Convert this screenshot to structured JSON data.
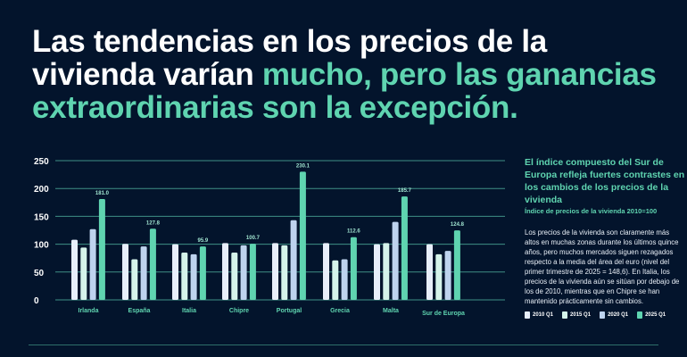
{
  "title": {
    "part1": "Las tendencias en los precios de la vivienda varían ",
    "part2": "mucho, pero las ganancias extraordinarias son la excepción."
  },
  "side": {
    "heading": "El índice compuesto del Sur de Europa refleja fuertes contrastes en los cambios de los precios de la vivienda",
    "subtitle": "Índice de precios de la vivienda 2010=100",
    "body": "Los precios de la vivienda son claramente más altos en muchas zonas durante los últimos quince años, pero muchos mercados siguen rezagados respecto a la media del área del euro (nivel del primer trimestre de 2025 = 148,6). En Italia, los precios de la vivienda aún se sitúan por debajo de los de 2010, mientras que en Chipre se han mantenido prácticamente sin cambios."
  },
  "chart_data": {
    "type": "bar",
    "title": "El índice compuesto del Sur de Europa refleja fuertes contrastes en los cambios de los precios de la vivienda",
    "ylabel": "Índice de precios de la vivienda 2010=100",
    "ylim": [
      0,
      250
    ],
    "yticks": [
      "0",
      "50",
      "100",
      "150",
      "200",
      "250"
    ],
    "grid": true,
    "legend_position": "bottom-right",
    "categories": [
      "Irlanda",
      "España",
      "Italia",
      "Chipre",
      "Portugal",
      "Grecia",
      "Malta",
      "Sur de Europa"
    ],
    "series": [
      {
        "name": "2010 Q1",
        "color": "#e8eefa",
        "values": [
          108,
          100.5,
          100,
          102,
          102,
          102,
          100,
          100
        ]
      },
      {
        "name": "2015 Q1",
        "color": "#d5f3ea",
        "values": [
          94,
          73,
          85,
          85,
          98,
          71,
          102,
          82
        ]
      },
      {
        "name": "2020 Q1",
        "color": "#bed3ee",
        "values": [
          127,
          96,
          82,
          98,
          143,
          73,
          140,
          88
        ]
      },
      {
        "name": "2025 Q1",
        "color": "#5fd4b0",
        "values": [
          181.0,
          127.8,
          95.9,
          100.7,
          230.1,
          112.6,
          185.7,
          124.8
        ]
      }
    ],
    "data_labels": [
      "181.0",
      "127.8",
      "95.9",
      "100.7",
      "230.1",
      "112.6",
      "185.7",
      "124.8"
    ]
  }
}
